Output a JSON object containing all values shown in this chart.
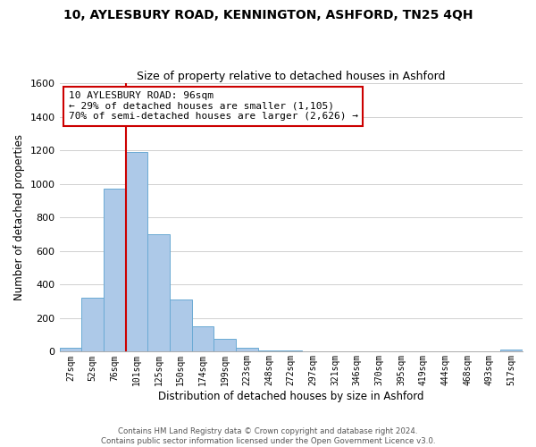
{
  "title": "10, AYLESBURY ROAD, KENNINGTON, ASHFORD, TN25 4QH",
  "subtitle": "Size of property relative to detached houses in Ashford",
  "xlabel": "Distribution of detached houses by size in Ashford",
  "ylabel": "Number of detached properties",
  "bins": [
    "27sqm",
    "52sqm",
    "76sqm",
    "101sqm",
    "125sqm",
    "150sqm",
    "174sqm",
    "199sqm",
    "223sqm",
    "248sqm",
    "272sqm",
    "297sqm",
    "321sqm",
    "346sqm",
    "370sqm",
    "395sqm",
    "419sqm",
    "444sqm",
    "468sqm",
    "493sqm",
    "517sqm"
  ],
  "values": [
    25,
    320,
    970,
    1190,
    700,
    310,
    150,
    75,
    25,
    5,
    5,
    0,
    0,
    0,
    0,
    0,
    0,
    0,
    0,
    0,
    15
  ],
  "bar_color": "#adc9e8",
  "bar_edge_color": "#6aaad4",
  "vline_x_index": 3,
  "vline_color": "#cc0000",
  "annotation_title": "10 AYLESBURY ROAD: 96sqm",
  "annotation_line1": "← 29% of detached houses are smaller (1,105)",
  "annotation_line2": "70% of semi-detached houses are larger (2,626) →",
  "annotation_box_color": "#ffffff",
  "annotation_box_edge": "#cc0000",
  "ylim": [
    0,
    1600
  ],
  "yticks": [
    0,
    200,
    400,
    600,
    800,
    1000,
    1200,
    1400,
    1600
  ],
  "background_color": "#ffffff",
  "grid_color": "#d0d0d0",
  "footer_line1": "Contains HM Land Registry data © Crown copyright and database right 2024.",
  "footer_line2": "Contains public sector information licensed under the Open Government Licence v3.0."
}
